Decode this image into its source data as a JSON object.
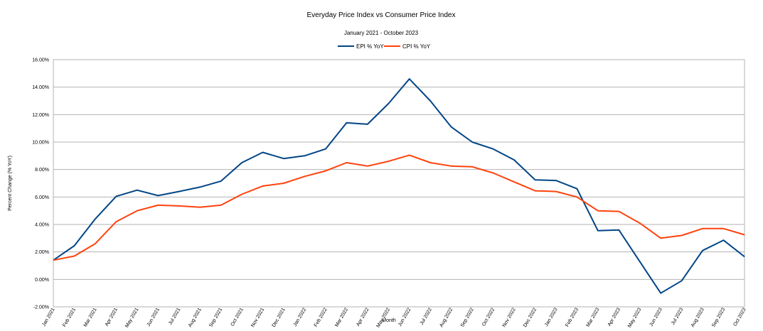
{
  "chart_data": {
    "type": "line",
    "title": "Everyday Price Index vs Consumer Price Index",
    "subtitle": "January 2021 - October 2023",
    "xlabel": "Month",
    "ylabel": "Percent Change (% YoY)",
    "ylim": [
      -2,
      16
    ],
    "yticks": [
      -2,
      0,
      2,
      4,
      6,
      8,
      10,
      12,
      14,
      16
    ],
    "ytick_labels": [
      "-2.00%",
      "0.00%",
      "2.00%",
      "4.00%",
      "6.00%",
      "8.00%",
      "10.00%",
      "12.00%",
      "14.00%",
      "16.00%"
    ],
    "grid": true,
    "legend_position": "top-center",
    "categories": [
      "Jan 2021",
      "Feb 2021",
      "Mar 2021",
      "Apr 2021",
      "May 2021",
      "Jun 2021",
      "Jul 2021",
      "Aug 2021",
      "Sep 2021",
      "Oct 2021",
      "Nov 2021",
      "Dec 2021",
      "Jan 2022",
      "Feb 2022",
      "Mar 2022",
      "Apr 2022",
      "May 2022",
      "Jun 2022",
      "Jul 2022",
      "Aug 2022",
      "Sep 2022",
      "Oct 2022",
      "Nov 2022",
      "Dec 2022",
      "Jan 2023",
      "Feb 2023",
      "Mar 2023",
      "Apr 2023",
      "May 2023",
      "Jun 2023",
      "Jul 2023",
      "Aug 2023",
      "Sep 2023",
      "Oct 2023"
    ],
    "series": [
      {
        "name": "EPI % YoY",
        "color": "#004586",
        "values": [
          1.4,
          2.45,
          4.4,
          6.05,
          6.5,
          6.1,
          6.4,
          6.72,
          7.15,
          8.5,
          9.25,
          8.8,
          9.0,
          9.5,
          11.4,
          11.3,
          12.8,
          14.6,
          13.0,
          11.1,
          10.0,
          9.5,
          8.7,
          7.25,
          7.2,
          6.6,
          3.55,
          3.6,
          1.3,
          -1.0,
          -0.1,
          2.1,
          2.85,
          1.65
        ]
      },
      {
        "name": "CPI % YoY",
        "color": "#ff420e",
        "values": [
          1.4,
          1.7,
          2.6,
          4.2,
          5.0,
          5.4,
          5.35,
          5.25,
          5.4,
          6.2,
          6.8,
          7.0,
          7.5,
          7.9,
          8.5,
          8.25,
          8.6,
          9.05,
          8.5,
          8.25,
          8.2,
          7.75,
          7.1,
          6.45,
          6.4,
          6.0,
          5.0,
          4.95,
          4.1,
          3.0,
          3.2,
          3.7,
          3.7,
          3.25
        ]
      }
    ]
  }
}
